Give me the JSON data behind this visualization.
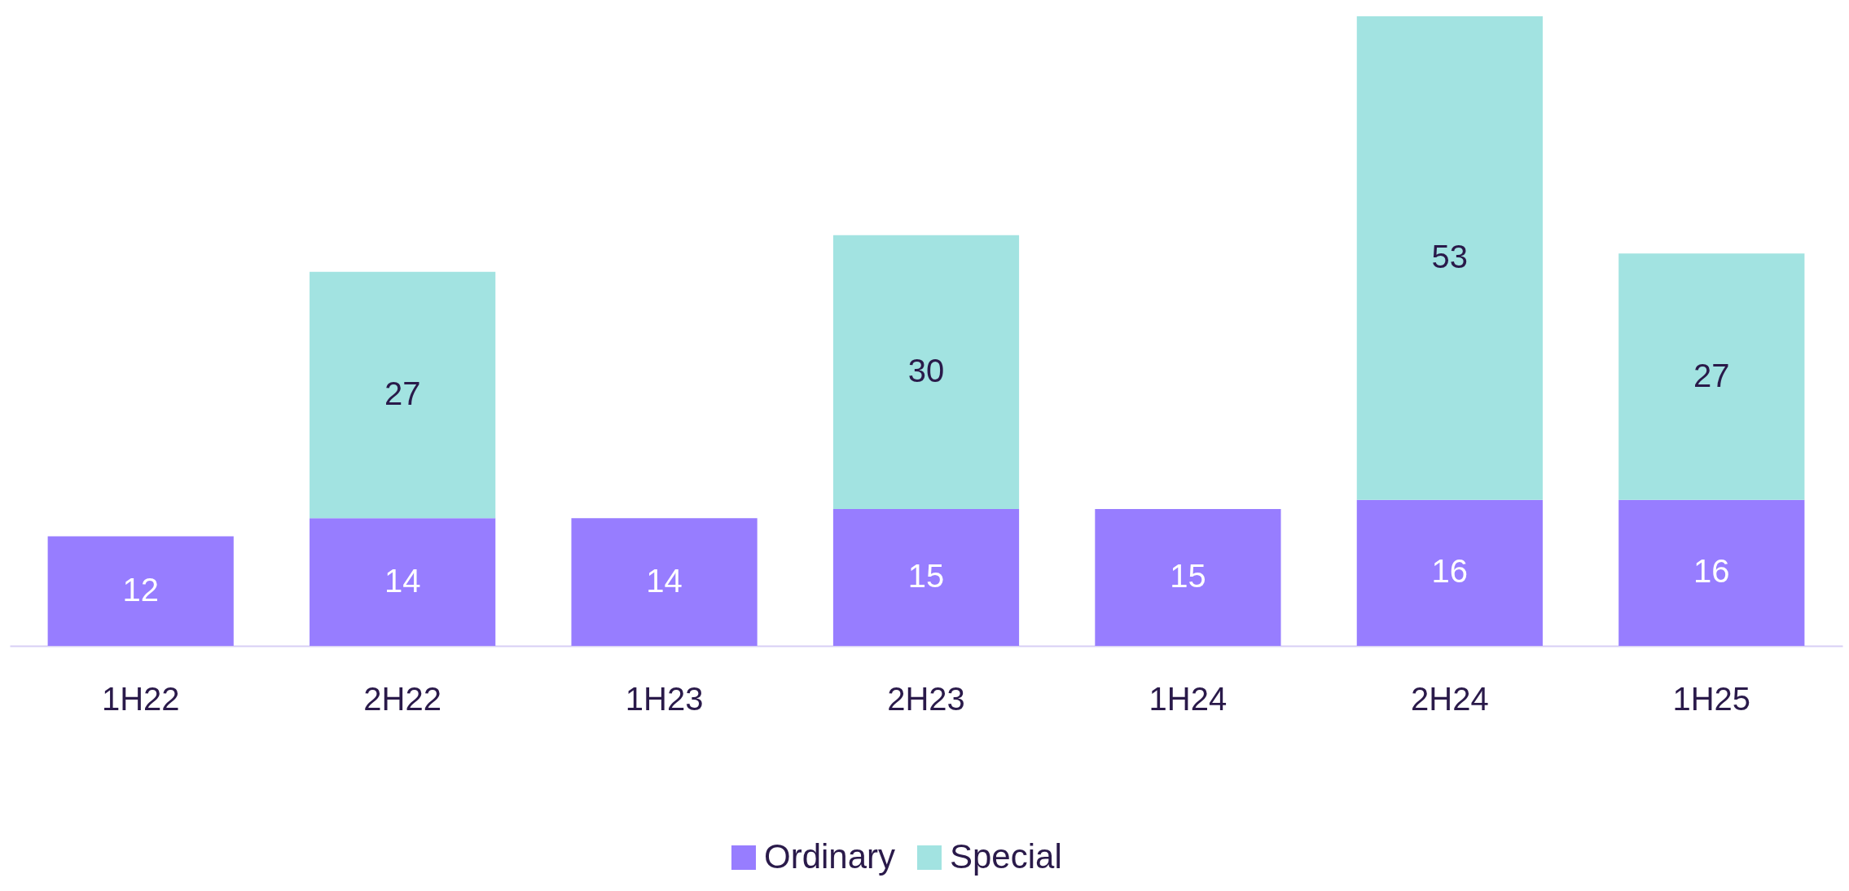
{
  "chart_data": {
    "type": "bar",
    "stacked": true,
    "data_labels": true,
    "legend": "bottom",
    "categories": [
      "1H22",
      "2H22",
      "1H23",
      "2H23",
      "1H24",
      "2H24",
      "1H25"
    ],
    "series": [
      {
        "name": "Ordinary",
        "color": "#977dff",
        "values": [
          12,
          14,
          14,
          15,
          15,
          16,
          16
        ]
      },
      {
        "name": "Special",
        "color": "#a2e3e1",
        "values": [
          null,
          27,
          null,
          30,
          null,
          53,
          27
        ]
      }
    ]
  }
}
